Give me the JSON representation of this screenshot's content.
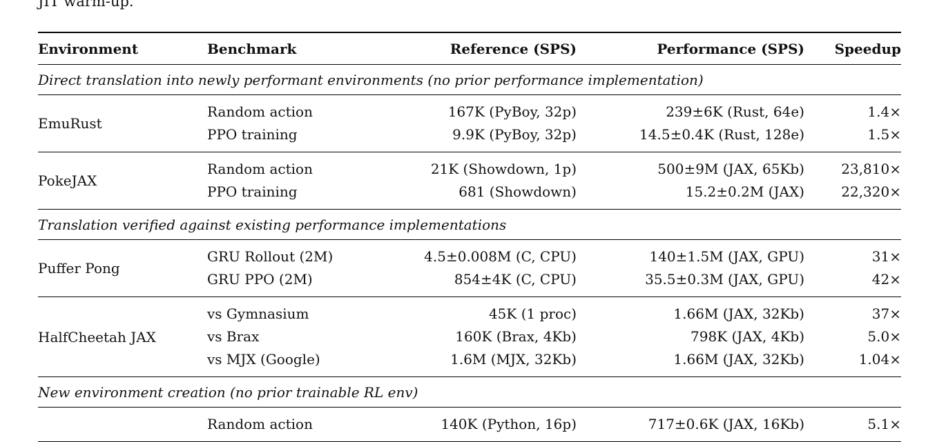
{
  "page": {
    "intro_text": "JIT warm-up.",
    "colors": {
      "background": "#ffffff",
      "text": "#111111",
      "rule": "#000000"
    }
  },
  "table": {
    "columns": [
      "Environment",
      "Benchmark",
      "Reference (SPS)",
      "Performance (SPS)",
      "Speedup"
    ],
    "sections": [
      {
        "title": "Direct translation into newly performant environments (no prior performance implementation)",
        "groups": [
          {
            "environment": "EmuRust",
            "rows": [
              {
                "benchmark": "Random action",
                "reference": "167K (PyBoy, 32p)",
                "performance": "239±6K (Rust, 64e)",
                "speedup": "1.4×"
              },
              {
                "benchmark": "PPO training",
                "reference": "9.9K (PyBoy, 32p)",
                "performance": "14.5±0.4K (Rust, 128e)",
                "speedup": "1.5×"
              }
            ]
          },
          {
            "environment": "PokeJAX",
            "rows": [
              {
                "benchmark": "Random action",
                "reference": "21K (Showdown, 1p)",
                "performance": "500±9M (JAX, 65Kb)",
                "speedup": "23,810×"
              },
              {
                "benchmark": "PPO training",
                "reference": "681 (Showdown)",
                "performance": "15.2±0.2M (JAX)",
                "speedup": "22,320×"
              }
            ]
          }
        ]
      },
      {
        "title": "Translation verified against existing performance implementations",
        "groups": [
          {
            "environment": "Puffer Pong",
            "rows": [
              {
                "benchmark": "GRU Rollout (2M)",
                "reference": "4.5±0.008M (C, CPU)",
                "performance": "140±1.5M (JAX, GPU)",
                "speedup": "31×"
              },
              {
                "benchmark": "GRU PPO (2M)",
                "reference": "854±4K (C, CPU)",
                "performance": "35.5±0.3M (JAX, GPU)",
                "speedup": "42×"
              }
            ]
          },
          {
            "environment": "HalfCheetah JAX",
            "rows": [
              {
                "benchmark": "vs Gymnasium",
                "reference": "45K (1 proc)",
                "performance": "1.66M (JAX, 32Kb)",
                "speedup": "37×"
              },
              {
                "benchmark": "vs Brax",
                "reference": "160K (Brax, 4Kb)",
                "performance": "798K (JAX, 4Kb)",
                "speedup": "5.0×"
              },
              {
                "benchmark": "vs MJX (Google)",
                "reference": "1.6M (MJX, 32Kb)",
                "performance": "1.66M (JAX, 32Kb)",
                "speedup": "1.04×"
              }
            ]
          }
        ]
      },
      {
        "title": "New environment creation (no prior trainable RL env)",
        "groups": [
          {
            "environment": "",
            "rows": [
              {
                "benchmark": "Random action",
                "reference": "140K (Python, 16p)",
                "performance": "717±0.6K (JAX, 16Kb)",
                "speedup": "5.1×"
              }
            ]
          }
        ]
      }
    ]
  }
}
